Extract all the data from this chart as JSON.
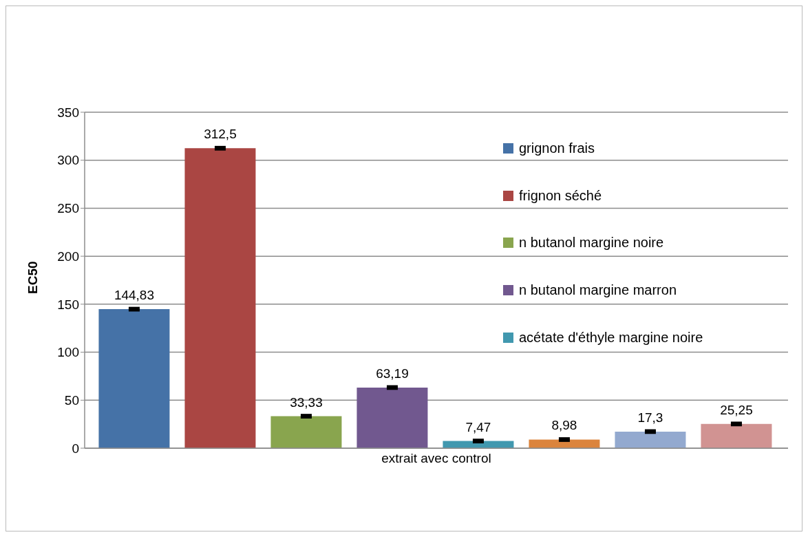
{
  "chart_data": {
    "type": "bar",
    "ylabel": "EC50",
    "categories": [
      "extrait avec control"
    ],
    "series": [
      {
        "name": "grignon frais",
        "color": "#4572a7",
        "values": [
          144.83
        ],
        "value_labels": [
          "144,83"
        ],
        "errors": [
          1
        ]
      },
      {
        "name": "frignon séché",
        "color": "#aa4643",
        "values": [
          312.5
        ],
        "value_labels": [
          "312,5"
        ],
        "errors": [
          1
        ]
      },
      {
        "name": "n butanol margine noire",
        "color": "#89a54e",
        "values": [
          33.33
        ],
        "value_labels": [
          "33,33"
        ],
        "errors": [
          1
        ]
      },
      {
        "name": "n butanol margine marron",
        "color": "#71588f",
        "values": [
          63.19
        ],
        "value_labels": [
          "63,19"
        ],
        "errors": [
          1
        ]
      },
      {
        "name": "acétate d'éthyle margine noire",
        "color": "#4198af",
        "values": [
          7.47
        ],
        "value_labels": [
          "7,47"
        ],
        "errors": [
          1
        ]
      },
      {
        "color": "#db843d",
        "values": [
          8.98
        ],
        "value_labels": [
          "8,98"
        ],
        "errors": [
          1
        ]
      },
      {
        "color": "#93a9cf",
        "values": [
          17.3
        ],
        "value_labels": [
          "17,3"
        ],
        "errors": [
          1
        ]
      },
      {
        "color": "#d19392",
        "values": [
          25.25
        ],
        "value_labels": [
          "25,25"
        ],
        "errors": [
          1
        ]
      }
    ],
    "ylim": [
      0,
      350
    ],
    "yticks": [
      0,
      50,
      100,
      150,
      200,
      250,
      300,
      350
    ],
    "grid": "y",
    "legend": "top right"
  }
}
